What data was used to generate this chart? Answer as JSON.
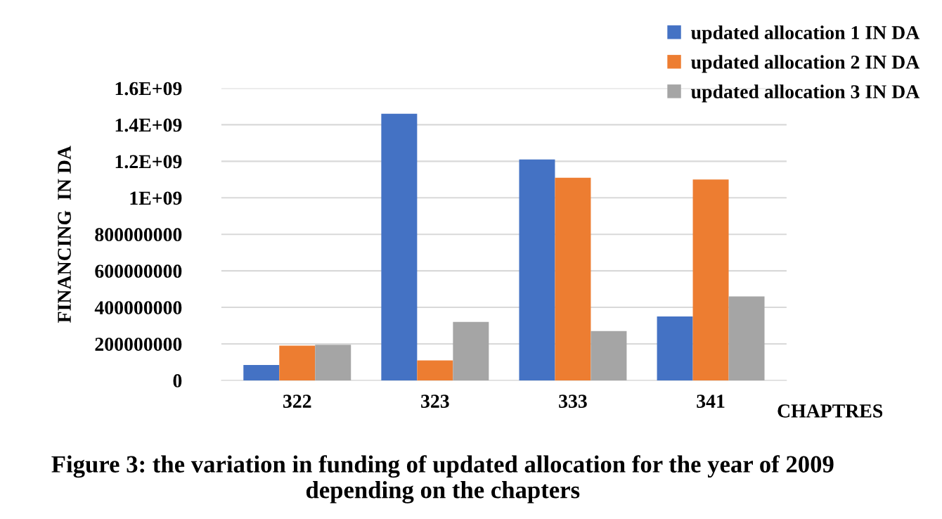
{
  "chart_data": {
    "type": "bar",
    "title": "Figure 3: the variation in funding of updated allocation for the year of 2009 depending on the chapters",
    "xlabel": "CHAPTRES",
    "ylabel": "FINANCING  IN DA",
    "categories": [
      "322",
      "323",
      "333",
      "341"
    ],
    "series": [
      {
        "name": "updated allocation 1 IN DA",
        "color": "#4472c4",
        "values": [
          85000000,
          1460000000,
          1210000000,
          350000000
        ]
      },
      {
        "name": "updated allocation 2 IN DA",
        "color": "#ed7d31",
        "values": [
          190000000,
          110000000,
          1110000000,
          1100000000
        ]
      },
      {
        "name": "updated allocation 3 IN DA",
        "color": "#a5a5a5",
        "values": [
          195000000,
          320000000,
          270000000,
          460000000
        ]
      }
    ],
    "ylim": [
      0,
      1600000000
    ],
    "yticks": [
      0,
      200000000,
      400000000,
      600000000,
      800000000,
      {
        "value": 1000000000,
        "label": "1E+09"
      },
      {
        "value": 1200000000,
        "label": "1.2E+09"
      },
      {
        "value": 1400000000,
        "label": "1.4E+09"
      },
      {
        "value": 1600000000,
        "label": "1.6E+09"
      }
    ],
    "grid": "y",
    "legend": "top right"
  }
}
